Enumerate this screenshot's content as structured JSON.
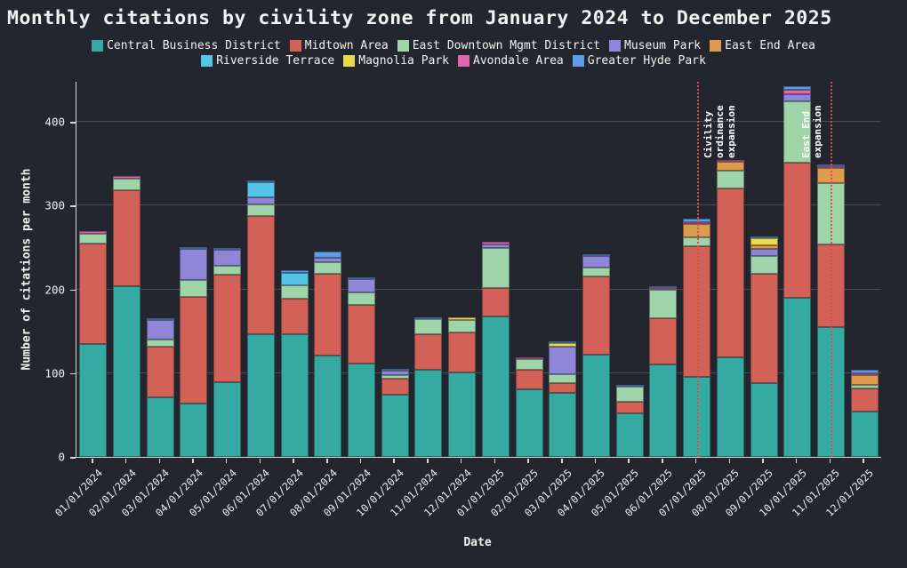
{
  "title": "Monthly citations by civility zone from January 2024 to December 2025",
  "xlabel": "Date",
  "ylabel": "Number of citations per month",
  "colors": {
    "background": "#23262e",
    "text": "#f2f2f2",
    "grid": "#a5acb9",
    "axis": "#d8d8d8",
    "annotation": "#d94f45"
  },
  "chart_data": {
    "type": "bar",
    "stacked": true,
    "title": "Monthly citations by civility zone from January 2024 to December 2025",
    "xlabel": "Date",
    "ylabel": "Number of citations per month",
    "ylim": [
      0,
      448
    ],
    "yticks": [
      0,
      100,
      200,
      300,
      400
    ],
    "grid": true,
    "legend_position": "top",
    "legend_rows": [
      5,
      4
    ],
    "categories": [
      "01/01/2024",
      "02/01/2024",
      "03/01/2024",
      "04/01/2024",
      "05/01/2024",
      "06/01/2024",
      "07/01/2024",
      "08/01/2024",
      "09/01/2024",
      "10/01/2024",
      "11/01/2024",
      "12/01/2024",
      "01/01/2025",
      "02/01/2025",
      "03/01/2025",
      "04/01/2025",
      "05/01/2025",
      "06/01/2025",
      "07/01/2025",
      "08/01/2025",
      "09/01/2025",
      "10/01/2025",
      "11/01/2025",
      "12/01/2025"
    ],
    "series": [
      {
        "name": "Central Business District",
        "color": "#35aaa2",
        "values": [
          135,
          204,
          71,
          64,
          89,
          146,
          146,
          121,
          112,
          74,
          104,
          101,
          168,
          81,
          76,
          122,
          52,
          110,
          96,
          119,
          88,
          190,
          155,
          54
        ]
      },
      {
        "name": "Midtown Area",
        "color": "#d26257",
        "values": [
          120,
          114,
          61,
          127,
          129,
          142,
          43,
          98,
          70,
          19,
          43,
          48,
          34,
          23,
          12,
          94,
          14,
          56,
          156,
          202,
          131,
          161,
          99,
          28
        ]
      },
      {
        "name": "East Downtown Mgmt District",
        "color": "#9fd4a8",
        "values": [
          12,
          14,
          8,
          20,
          10,
          14,
          16,
          13,
          14,
          5,
          18,
          15,
          48,
          13,
          11,
          10,
          18,
          34,
          10,
          21,
          21,
          74,
          73,
          4
        ]
      },
      {
        "name": "Museum Park",
        "color": "#8f86d8",
        "values": [
          0,
          0,
          23,
          37,
          19,
          8,
          0,
          6,
          16,
          5,
          0,
          0,
          4,
          0,
          33,
          14,
          0,
          0,
          0,
          0,
          8,
          8,
          0,
          0
        ]
      },
      {
        "name": "East End Area",
        "color": "#e09a4e",
        "values": [
          0,
          0,
          0,
          0,
          0,
          0,
          0,
          0,
          0,
          0,
          0,
          0,
          0,
          0,
          0,
          0,
          0,
          0,
          16,
          10,
          5,
          0,
          18,
          12
        ]
      },
      {
        "name": "Riverside Terrace",
        "color": "#52c5e8",
        "values": [
          0,
          0,
          0,
          0,
          0,
          18,
          15,
          0,
          0,
          0,
          0,
          0,
          0,
          0,
          0,
          0,
          0,
          0,
          0,
          0,
          0,
          0,
          0,
          0
        ]
      },
      {
        "name": "Magnolia Park",
        "color": "#e8d94e",
        "values": [
          0,
          0,
          0,
          0,
          0,
          0,
          0,
          0,
          0,
          0,
          0,
          3,
          0,
          0,
          4,
          0,
          0,
          0,
          0,
          0,
          8,
          0,
          0,
          0
        ]
      },
      {
        "name": "Avondale Area",
        "color": "#e066b0",
        "values": [
          3,
          3,
          0,
          0,
          0,
          0,
          0,
          0,
          0,
          0,
          0,
          0,
          3,
          2,
          0,
          0,
          0,
          2,
          2,
          3,
          0,
          5,
          2,
          2
        ]
      },
      {
        "name": "Greater Hyde Park",
        "color": "#5a9de8",
        "values": [
          0,
          0,
          3,
          1,
          2,
          2,
          3,
          7,
          1,
          2,
          1,
          0,
          0,
          0,
          2,
          2,
          1,
          2,
          4,
          0,
          2,
          5,
          2,
          4
        ]
      }
    ],
    "annotations": [
      {
        "month": "07/01/2025",
        "lines": [
          "Civility",
          "ordinance",
          "expansion"
        ],
        "side": "right",
        "color": "#d94f45"
      },
      {
        "month": "11/01/2025",
        "lines": [
          "East End",
          "expansion"
        ],
        "side": "left",
        "color": "#d94f45"
      }
    ]
  }
}
